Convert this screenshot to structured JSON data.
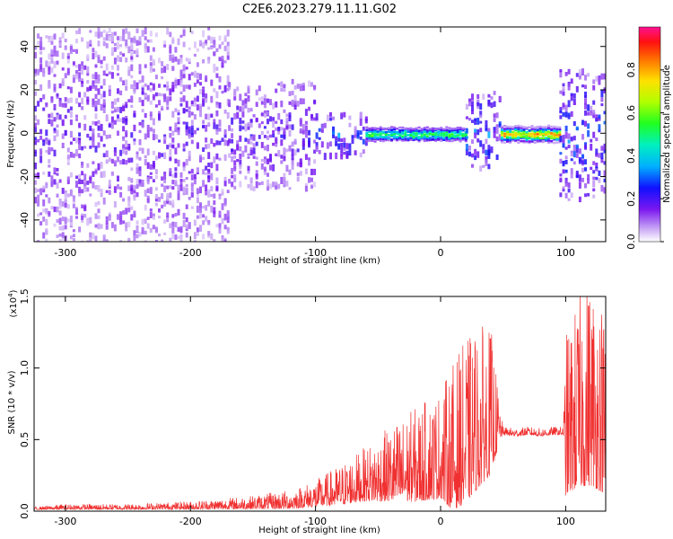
{
  "title": "C2E6.2023.279.11.11.G02",
  "chart_data": [
    {
      "type": "heatmap",
      "xlabel": "Height of straight line (km)",
      "ylabel": "Frequency (Hz)",
      "xlim": [
        -325,
        132
      ],
      "ylim": [
        -50,
        49
      ],
      "x_ticks": [
        "-300",
        "-200",
        "-100",
        "0",
        "100"
      ],
      "x_tick_values": [
        -300,
        -200,
        -100,
        0,
        100
      ],
      "y_ticks": [
        "40",
        "20",
        "0",
        "-20",
        "-40"
      ],
      "y_tick_values": [
        40,
        20,
        0,
        -20,
        -40
      ],
      "colorbar": {
        "label": "Normalized spectral amplitude",
        "ticks": [
          "0.0",
          "0.2",
          "0.4",
          "0.6",
          "0.8"
        ],
        "tick_values": [
          0.0,
          0.2,
          0.4,
          0.6,
          0.8
        ],
        "range": [
          0,
          1
        ]
      },
      "features": [
        {
          "x": [
            -325,
            -170
          ],
          "band_hz": [
            -50,
            49
          ],
          "amplitude": 0.18
        },
        {
          "x": [
            -170,
            -100
          ],
          "band_hz": [
            -25,
            25
          ],
          "amplitude": 0.2
        },
        {
          "x": [
            -100,
            -60
          ],
          "band_hz": [
            -10,
            10
          ],
          "amplitude": 0.3
        },
        {
          "x": [
            -60,
            20
          ],
          "center_hz": 0,
          "amplitude": 0.55
        },
        {
          "x": [
            20,
            48
          ],
          "band_hz": [
            -15,
            20
          ],
          "amplitude": 0.3
        },
        {
          "x": [
            48,
            95
          ],
          "center_hz": 0,
          "amplitude": 0.85
        },
        {
          "x": [
            95,
            132
          ],
          "band_hz": [
            -30,
            30
          ],
          "amplitude": 0.3
        }
      ]
    },
    {
      "type": "line",
      "xlabel": "Height of straight line (km)",
      "ylabel": "SNR (10 * v/v)",
      "scale_label": "(x10^4)",
      "xlim": [
        -325,
        132
      ],
      "ylim": [
        0,
        1.5
      ],
      "x_ticks": [
        "-300",
        "-200",
        "-100",
        "0",
        "100"
      ],
      "x_tick_values": [
        -300,
        -200,
        -100,
        0,
        100
      ],
      "y_ticks": [
        "0.0",
        "0.5",
        "1.0",
        "1.5"
      ],
      "y_tick_values": [
        0.0,
        0.5,
        1.0,
        1.5
      ],
      "series": [
        {
          "color": "#f03030",
          "x": [
            -325,
            -300,
            -250,
            -200,
            -150,
            -120,
            -100,
            -80,
            -60,
            -40,
            -20,
            0,
            10,
            20,
            30,
            40,
            48,
            50,
            60,
            70,
            80,
            90,
            98,
            100,
            110,
            120,
            132
          ],
          "y": [
            0.02,
            0.03,
            0.03,
            0.04,
            0.06,
            0.08,
            0.12,
            0.18,
            0.25,
            0.32,
            0.38,
            0.45,
            0.5,
            0.6,
            0.7,
            0.75,
            0.6,
            0.56,
            0.55,
            0.56,
            0.55,
            0.56,
            0.56,
            0.65,
            0.8,
            0.9,
            0.75
          ],
          "spread": [
            0.01,
            0.02,
            0.02,
            0.03,
            0.05,
            0.07,
            0.1,
            0.15,
            0.2,
            0.28,
            0.35,
            0.4,
            0.55,
            0.6,
            0.6,
            0.55,
            0.1,
            0.03,
            0.03,
            0.03,
            0.03,
            0.03,
            0.03,
            0.6,
            0.7,
            0.8,
            0.7
          ]
        }
      ]
    }
  ]
}
